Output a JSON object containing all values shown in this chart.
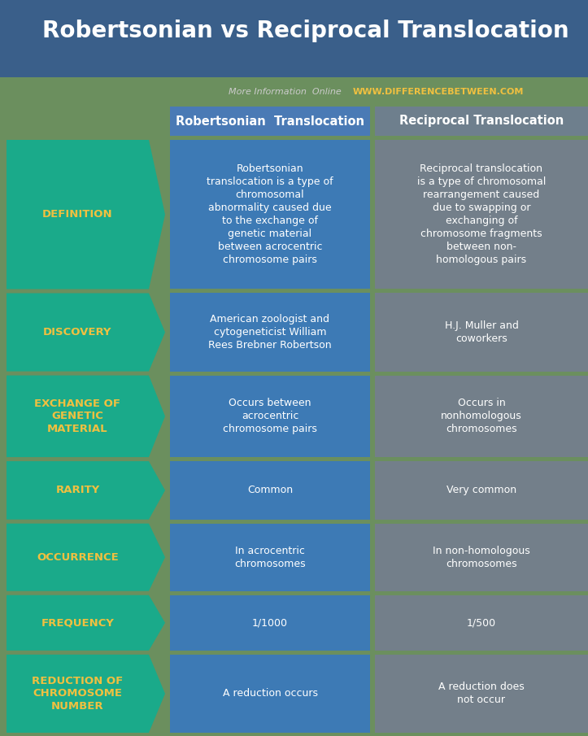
{
  "title": "Robertsonian vs Reciprocal Translocation",
  "subtitle_normal": "More Information  Online  ",
  "subtitle_url": "WWW.DIFFERENCEBETWEEN.COM",
  "col1_header": "Robertsonian  Translocation",
  "col2_header": "Reciprocal Translocation",
  "rows": [
    {
      "label": "DEFINITION",
      "col1": "Robertsonian\ntranslocation is a type of\nchromosomal\nabnormality caused due\nto the exchange of\ngenetic material\nbetween acrocentric\nchromosome pairs",
      "col2": "Reciprocal translocation\nis a type of chromosomal\nrearrangement caused\ndue to swapping or\nexchanging of\nchromosome fragments\nbetween non-\nhomologous pairs"
    },
    {
      "label": "DISCOVERY",
      "col1": "American zoologist and\ncytogeneticist William\nRees Brebner Robertson",
      "col2": "H.J. Muller and\ncoworkers"
    },
    {
      "label": "EXCHANGE OF\nGENETIC\nMATERIAL",
      "col1": "Occurs between\nacrocentric\nchromosome pairs",
      "col2": "Occurs in\nnonhomologous\nchromosomes"
    },
    {
      "label": "RARITY",
      "col1": "Common",
      "col2": "Very common"
    },
    {
      "label": "OCCURRENCE",
      "col1": "In acrocentric\nchromosomes",
      "col2": "In non-homologous\nchromosomes"
    },
    {
      "label": "FREQUENCY",
      "col1": "1/1000",
      "col2": "1/500"
    },
    {
      "label": "REDUCTION OF\nCHROMOSOME\nNUMBER",
      "col1": "A reduction occurs",
      "col2": "A reduction does\nnot occur"
    }
  ],
  "bg_color": "#6b8f5e",
  "title_banner_color": "#3a5f8a",
  "header_bg_col1": "#4a7ab5",
  "header_bg_col2": "#6e7f8d",
  "cell_bg_col1": "#3d7ab5",
  "cell_bg_col2": "#737f8a",
  "label_bg": "#1aaa8a",
  "label_text_color": "#f0c040",
  "cell_text_color": "#ffffff",
  "header_text_color": "#ffffff",
  "title_color": "#ffffff",
  "subtitle_normal_color": "#cccccc",
  "subtitle_url_color": "#f0c040",
  "title_fontsize": 20,
  "header_fontsize": 10.5,
  "label_fontsize": 9.5,
  "cell_fontsize": 9.0,
  "fig_w": 7.23,
  "fig_h": 9.05,
  "dpi": 100
}
